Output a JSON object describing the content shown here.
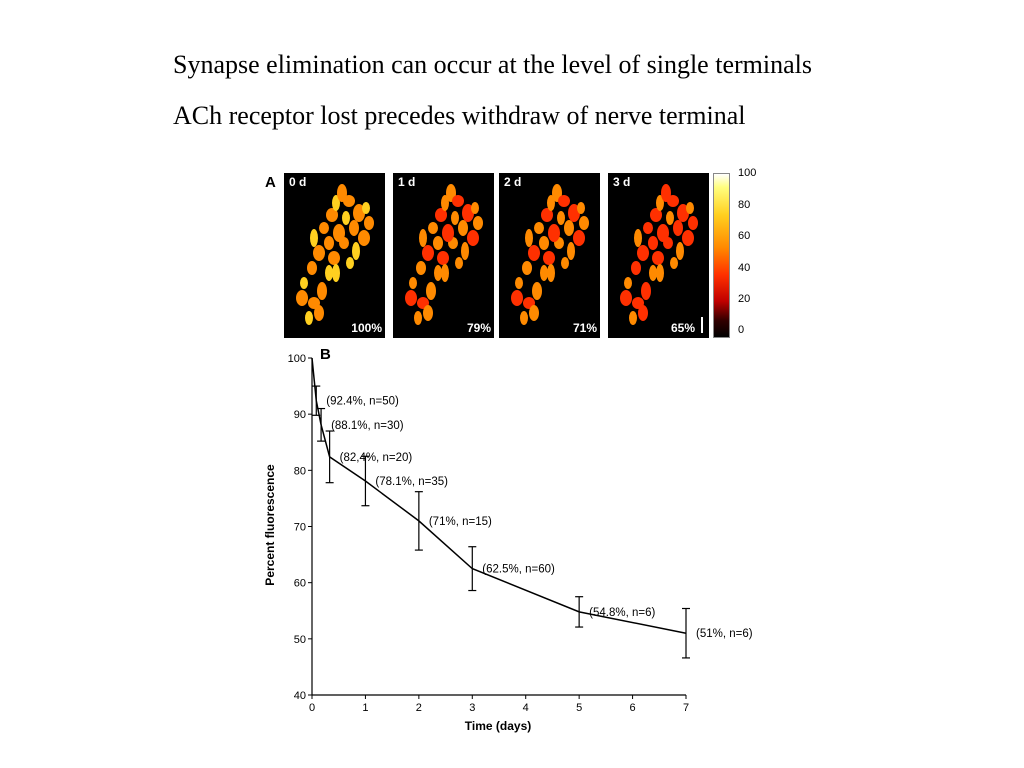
{
  "slide": {
    "line1": "Synapse elimination can occur at the level of single terminals",
    "line2": "ACh receptor lost precedes withdraw of nerve terminal"
  },
  "figure": {
    "panel_a_label": "A",
    "panel_b_label": "B",
    "panels": [
      {
        "day": "0 d",
        "percent": "100%"
      },
      {
        "day": "1 d",
        "percent": "79%"
      },
      {
        "day": "2 d",
        "percent": "71%"
      },
      {
        "day": "3 d",
        "percent": "65%"
      }
    ],
    "colorbar": {
      "ticks": [
        "100",
        "80",
        "60",
        "40",
        "20",
        "0"
      ],
      "colors": [
        "#ffffff",
        "#ffff80",
        "#ffd020",
        "#ff8a00",
        "#ff3000",
        "#c00000",
        "#000000"
      ]
    }
  },
  "chart_data": {
    "type": "line",
    "title": "",
    "xlabel": "Time (days)",
    "ylabel": "Percent fluorescence",
    "xlim": [
      0,
      7
    ],
    "ylim": [
      40,
      100
    ],
    "xticks": [
      0,
      1,
      2,
      3,
      4,
      5,
      6,
      7
    ],
    "yticks": [
      40,
      50,
      60,
      70,
      80,
      90,
      100
    ],
    "grid": false,
    "series": [
      {
        "x": [
          0,
          0.08,
          0.17,
          0.33,
          1,
          2,
          3,
          5,
          7
        ],
        "y": [
          100,
          92.4,
          88.1,
          82.4,
          78.1,
          71,
          62.5,
          54.8,
          51
        ],
        "err": [
          0,
          2.6,
          2.9,
          4.6,
          4.4,
          5.2,
          3.9,
          2.7,
          4.4
        ],
        "labels": [
          "",
          "(92.4%, n=50)",
          "(88.1%, n=30)",
          "(82,4%, n=20)",
          "(78.1%, n=35)",
          "(71%, n=15)",
          "(62.5%, n=60)",
          "(54.8%, n=6)",
          "(51%, n=6)"
        ],
        "color": "#000000"
      }
    ]
  }
}
